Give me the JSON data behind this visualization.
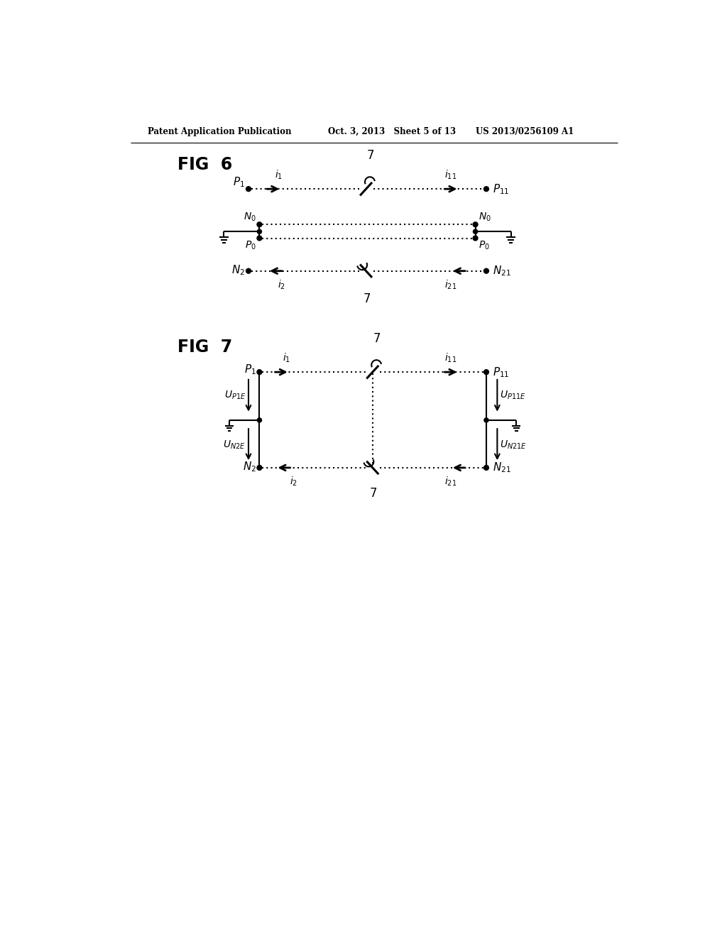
{
  "bg_color": "#ffffff",
  "line_color": "#000000",
  "header_left": "Patent Application Publication",
  "header_mid": "Oct. 3, 2013   Sheet 5 of 13",
  "header_right": "US 2013/0256109 A1",
  "fig6_label": "FIG  6",
  "fig7_label": "FIG  7",
  "dot_pattern": [
    1,
    3
  ]
}
